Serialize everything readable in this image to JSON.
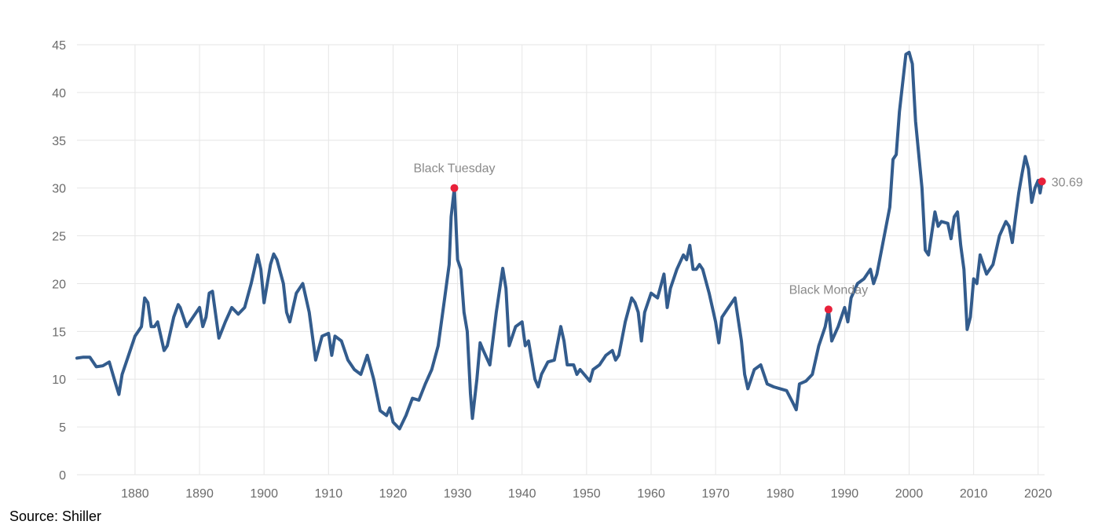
{
  "source_note": "Source: Shiller",
  "chart_data": {
    "type": "line",
    "title": "",
    "xlabel": "",
    "ylabel": "",
    "xlim": [
      1871,
      2021
    ],
    "ylim": [
      0,
      45
    ],
    "x_ticks": [
      1880,
      1890,
      1900,
      1910,
      1920,
      1930,
      1940,
      1950,
      1960,
      1970,
      1980,
      1990,
      2000,
      2010,
      2020
    ],
    "y_ticks": [
      0,
      5,
      10,
      15,
      20,
      25,
      30,
      35,
      40,
      45
    ],
    "grid": "vertical and horizontal",
    "colors": {
      "series": "#335c8d",
      "marker": "#e8213a",
      "grid": "#e6e6e6",
      "axis_text": "#6b6b6b",
      "annotation_text": "#8a8a8a"
    },
    "series": [
      {
        "points": [
          [
            1871,
            12.2
          ],
          [
            1872,
            12.3
          ],
          [
            1873,
            12.3
          ],
          [
            1874,
            11.3
          ],
          [
            1875,
            11.4
          ],
          [
            1876,
            11.8
          ],
          [
            1877,
            9.5
          ],
          [
            1877.5,
            8.4
          ],
          [
            1878,
            10.5
          ],
          [
            1879,
            12.5
          ],
          [
            1880,
            14.5
          ],
          [
            1881,
            15.5
          ],
          [
            1881.5,
            18.5
          ],
          [
            1882,
            18.0
          ],
          [
            1882.5,
            15.5
          ],
          [
            1883,
            15.5
          ],
          [
            1883.5,
            16.0
          ],
          [
            1884,
            14.5
          ],
          [
            1884.5,
            13.0
          ],
          [
            1885,
            13.5
          ],
          [
            1886,
            16.5
          ],
          [
            1886.7,
            17.8
          ],
          [
            1887,
            17.5
          ],
          [
            1888,
            15.5
          ],
          [
            1889,
            16.5
          ],
          [
            1890,
            17.5
          ],
          [
            1890.5,
            15.5
          ],
          [
            1891,
            16.5
          ],
          [
            1891.5,
            19.0
          ],
          [
            1892,
            19.2
          ],
          [
            1893,
            14.3
          ],
          [
            1894,
            16.0
          ],
          [
            1895,
            17.5
          ],
          [
            1896,
            16.8
          ],
          [
            1897,
            17.5
          ],
          [
            1898,
            20.0
          ],
          [
            1899,
            23.0
          ],
          [
            1899.5,
            21.5
          ],
          [
            1900,
            18.0
          ],
          [
            1901,
            22.0
          ],
          [
            1901.5,
            23.1
          ],
          [
            1902,
            22.5
          ],
          [
            1903,
            20.0
          ],
          [
            1903.5,
            17.0
          ],
          [
            1904,
            16.0
          ],
          [
            1905,
            19.0
          ],
          [
            1906,
            20.0
          ],
          [
            1906.5,
            18.5
          ],
          [
            1907,
            17.0
          ],
          [
            1908,
            12.0
          ],
          [
            1909,
            14.5
          ],
          [
            1910,
            14.8
          ],
          [
            1910.5,
            12.5
          ],
          [
            1911,
            14.5
          ],
          [
            1912,
            14.0
          ],
          [
            1913,
            12.0
          ],
          [
            1914,
            11.0
          ],
          [
            1915,
            10.5
          ],
          [
            1916,
            12.5
          ],
          [
            1917,
            10.0
          ],
          [
            1918,
            6.7
          ],
          [
            1919,
            6.2
          ],
          [
            1919.5,
            7.0
          ],
          [
            1920,
            5.5
          ],
          [
            1921,
            4.8
          ],
          [
            1922,
            6.2
          ],
          [
            1923,
            8.0
          ],
          [
            1924,
            7.8
          ],
          [
            1925,
            9.5
          ],
          [
            1926,
            11.0
          ],
          [
            1927,
            13.5
          ],
          [
            1928,
            18.5
          ],
          [
            1928.7,
            22.0
          ],
          [
            1929,
            27.0
          ],
          [
            1929.5,
            30.0
          ],
          [
            1930,
            22.5
          ],
          [
            1930.5,
            21.5
          ],
          [
            1931,
            17.0
          ],
          [
            1931.5,
            15.0
          ],
          [
            1932,
            8.5
          ],
          [
            1932.3,
            5.9
          ],
          [
            1933,
            10.0
          ],
          [
            1933.5,
            13.8
          ],
          [
            1934,
            13.0
          ],
          [
            1935,
            11.5
          ],
          [
            1936,
            17.0
          ],
          [
            1937,
            21.6
          ],
          [
            1937.5,
            19.5
          ],
          [
            1938,
            13.5
          ],
          [
            1939,
            15.5
          ],
          [
            1940,
            16.0
          ],
          [
            1940.5,
            13.5
          ],
          [
            1941,
            14.0
          ],
          [
            1942,
            10.0
          ],
          [
            1942.5,
            9.2
          ],
          [
            1943,
            10.5
          ],
          [
            1944,
            11.8
          ],
          [
            1945,
            12.0
          ],
          [
            1946,
            15.5
          ],
          [
            1946.5,
            14.0
          ],
          [
            1947,
            11.5
          ],
          [
            1948,
            11.5
          ],
          [
            1948.5,
            10.5
          ],
          [
            1949,
            11.0
          ],
          [
            1950,
            10.2
          ],
          [
            1950.5,
            9.8
          ],
          [
            1951,
            11.0
          ],
          [
            1952,
            11.5
          ],
          [
            1953,
            12.5
          ],
          [
            1954,
            13.0
          ],
          [
            1954.5,
            12.0
          ],
          [
            1955,
            12.5
          ],
          [
            1956,
            16.0
          ],
          [
            1957,
            18.5
          ],
          [
            1957.5,
            18.0
          ],
          [
            1958,
            17.0
          ],
          [
            1958.5,
            14.0
          ],
          [
            1959,
            17.0
          ],
          [
            1960,
            19.0
          ],
          [
            1961,
            18.5
          ],
          [
            1962,
            21.0
          ],
          [
            1962.5,
            17.5
          ],
          [
            1963,
            19.5
          ],
          [
            1964,
            21.5
          ],
          [
            1965,
            23.0
          ],
          [
            1965.5,
            22.5
          ],
          [
            1966,
            24.0
          ],
          [
            1966.5,
            21.5
          ],
          [
            1967,
            21.5
          ],
          [
            1967.5,
            22.0
          ],
          [
            1968,
            21.5
          ],
          [
            1969,
            19.0
          ],
          [
            1970,
            16.0
          ],
          [
            1970.5,
            13.8
          ],
          [
            1971,
            16.5
          ],
          [
            1972,
            17.5
          ],
          [
            1973,
            18.5
          ],
          [
            1974,
            14.0
          ],
          [
            1974.5,
            10.5
          ],
          [
            1975,
            9.0
          ],
          [
            1976,
            11.0
          ],
          [
            1977,
            11.5
          ],
          [
            1978,
            9.5
          ],
          [
            1979,
            9.2
          ],
          [
            1980,
            9.0
          ],
          [
            1981,
            8.8
          ],
          [
            1982,
            7.5
          ],
          [
            1982.5,
            6.8
          ],
          [
            1983,
            9.5
          ],
          [
            1984,
            9.8
          ],
          [
            1985,
            10.5
          ],
          [
            1986,
            13.5
          ],
          [
            1987,
            15.5
          ],
          [
            1987.5,
            17.3
          ],
          [
            1988,
            14.0
          ],
          [
            1989,
            15.5
          ],
          [
            1990,
            17.5
          ],
          [
            1990.5,
            16.0
          ],
          [
            1991,
            18.5
          ],
          [
            1992,
            20.0
          ],
          [
            1993,
            20.5
          ],
          [
            1994,
            21.5
          ],
          [
            1994.5,
            20.0
          ],
          [
            1995,
            21.0
          ],
          [
            1996,
            24.5
          ],
          [
            1997,
            28.0
          ],
          [
            1997.5,
            33.0
          ],
          [
            1998,
            33.5
          ],
          [
            1998.5,
            38.0
          ],
          [
            1999,
            41.0
          ],
          [
            1999.5,
            44.0
          ],
          [
            2000,
            44.2
          ],
          [
            2000.5,
            43.0
          ],
          [
            2001,
            37.0
          ],
          [
            2002,
            30.0
          ],
          [
            2002.5,
            23.5
          ],
          [
            2003,
            23.0
          ],
          [
            2004,
            27.5
          ],
          [
            2004.5,
            26.0
          ],
          [
            2005,
            26.5
          ],
          [
            2006,
            26.3
          ],
          [
            2006.5,
            24.7
          ],
          [
            2007,
            27.0
          ],
          [
            2007.5,
            27.5
          ],
          [
            2008,
            24.0
          ],
          [
            2008.5,
            21.5
          ],
          [
            2009,
            15.2
          ],
          [
            2009.5,
            16.5
          ],
          [
            2010,
            20.5
          ],
          [
            2010.5,
            20.0
          ],
          [
            2011,
            23.0
          ],
          [
            2011.5,
            22.0
          ],
          [
            2012,
            21.0
          ],
          [
            2013,
            22.0
          ],
          [
            2014,
            25.0
          ],
          [
            2015,
            26.5
          ],
          [
            2015.5,
            26.0
          ],
          [
            2016,
            24.3
          ],
          [
            2016.5,
            27.0
          ],
          [
            2017,
            29.5
          ],
          [
            2017.5,
            31.5
          ],
          [
            2018,
            33.3
          ],
          [
            2018.5,
            32.0
          ],
          [
            2019,
            28.5
          ],
          [
            2019.5,
            30.0
          ],
          [
            2020,
            30.8
          ],
          [
            2020.3,
            29.5
          ],
          [
            2020.6,
            30.69
          ]
        ]
      }
    ],
    "annotations": [
      {
        "label": "Black Tuesday",
        "x": 1929.5,
        "y": 30.0,
        "label_side": "top"
      },
      {
        "label": "Black Monday",
        "x": 1987.5,
        "y": 17.3,
        "label_side": "top"
      },
      {
        "label": "30.69",
        "x": 2020.6,
        "y": 30.69,
        "label_side": "right"
      }
    ]
  }
}
